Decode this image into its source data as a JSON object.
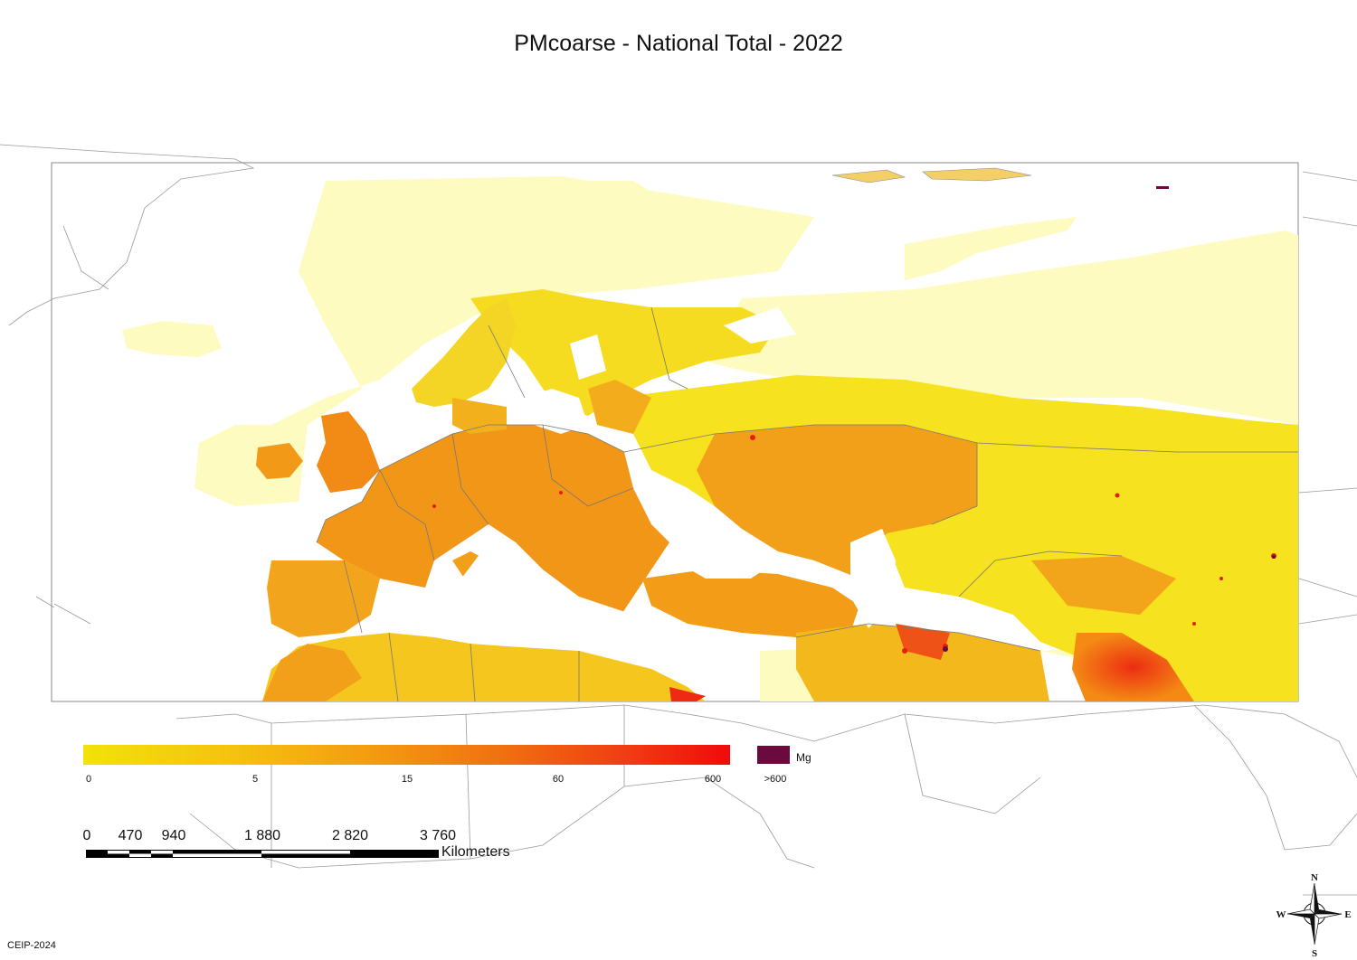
{
  "title": "PMcoarse - National Total - 2022",
  "legend": {
    "unit": "Mg",
    "ticks": [
      "0",
      "5",
      "15",
      "60",
      "600",
      ">600"
    ],
    "colors": {
      "low": "#f2e20a",
      "mid": "#f49a10",
      "high": "#f00a0a",
      "over": "#6b0a3f",
      "land_pale": "#fdfbc0",
      "sea": "#ffffff",
      "border": "#777777"
    }
  },
  "scalebar": {
    "labels": [
      "0",
      "470",
      "940",
      "1 880",
      "2 820",
      "3 760"
    ],
    "unit": "Kilometers"
  },
  "compass": {
    "n": "N",
    "s": "S",
    "e": "E",
    "w": "W"
  },
  "credit": "CEIP-2024"
}
